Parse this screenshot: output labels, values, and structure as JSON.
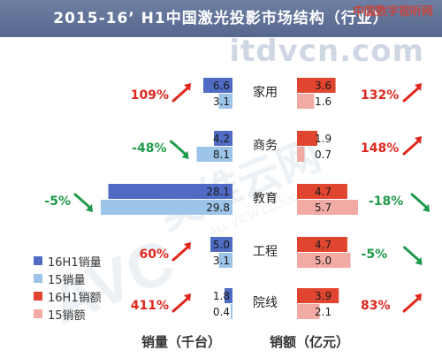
{
  "title": "2015-16’ H1中国激光投影市场结构（行业）",
  "watermarks": {
    "site_top": "中国数字视听网",
    "site_main": "itdvcn.com",
    "diagonal_logo": "AVC",
    "diagonal_text": "奥维云网",
    "diagonal_sub": "ALL VIEW CLOUD"
  },
  "legend": [
    {
      "label": "16H1销量",
      "color": "#4f6bc4"
    },
    {
      "label": "15销量",
      "color": "#9cc3e8"
    },
    {
      "label": "16H1销额",
      "color": "#e0462f"
    },
    {
      "label": "15销额",
      "color": "#f2aaa4"
    }
  ],
  "axis_captions": {
    "left": "销量（千台）",
    "right": "销额（亿元）"
  },
  "colors": {
    "growth_up": "#e0271e",
    "growth_down": "#1e9a4a"
  },
  "chart_data": {
    "type": "bar",
    "orientation": "horizontal-butterfly",
    "categories": [
      "家用",
      "商务",
      "教育",
      "工程",
      "院线"
    ],
    "volume_series": [
      {
        "name": "16H1销量",
        "values": [
          6.6,
          4.2,
          28.1,
          5.0,
          1.8
        ]
      },
      {
        "name": "15销量",
        "values": [
          3.1,
          8.1,
          29.8,
          3.1,
          0.4
        ]
      }
    ],
    "volume_growth": [
      "109%",
      "-48%",
      "-5%",
      "60%",
      "411%"
    ],
    "volume_growth_direction": [
      "up",
      "down",
      "down",
      "up",
      "up"
    ],
    "revenue_series": [
      {
        "name": "16H1销额",
        "values": [
          3.6,
          1.9,
          4.7,
          4.7,
          3.9
        ]
      },
      {
        "name": "15销额",
        "values": [
          1.6,
          0.7,
          5.7,
          5.0,
          2.1
        ]
      }
    ],
    "revenue_growth": [
      "132%",
      "148%",
      "-18%",
      "-5%",
      "83%"
    ],
    "revenue_growth_direction": [
      "up",
      "up",
      "down",
      "down",
      "up"
    ],
    "xlabel_left": "销量（千台）",
    "xlabel_right": "销额（亿元）"
  }
}
